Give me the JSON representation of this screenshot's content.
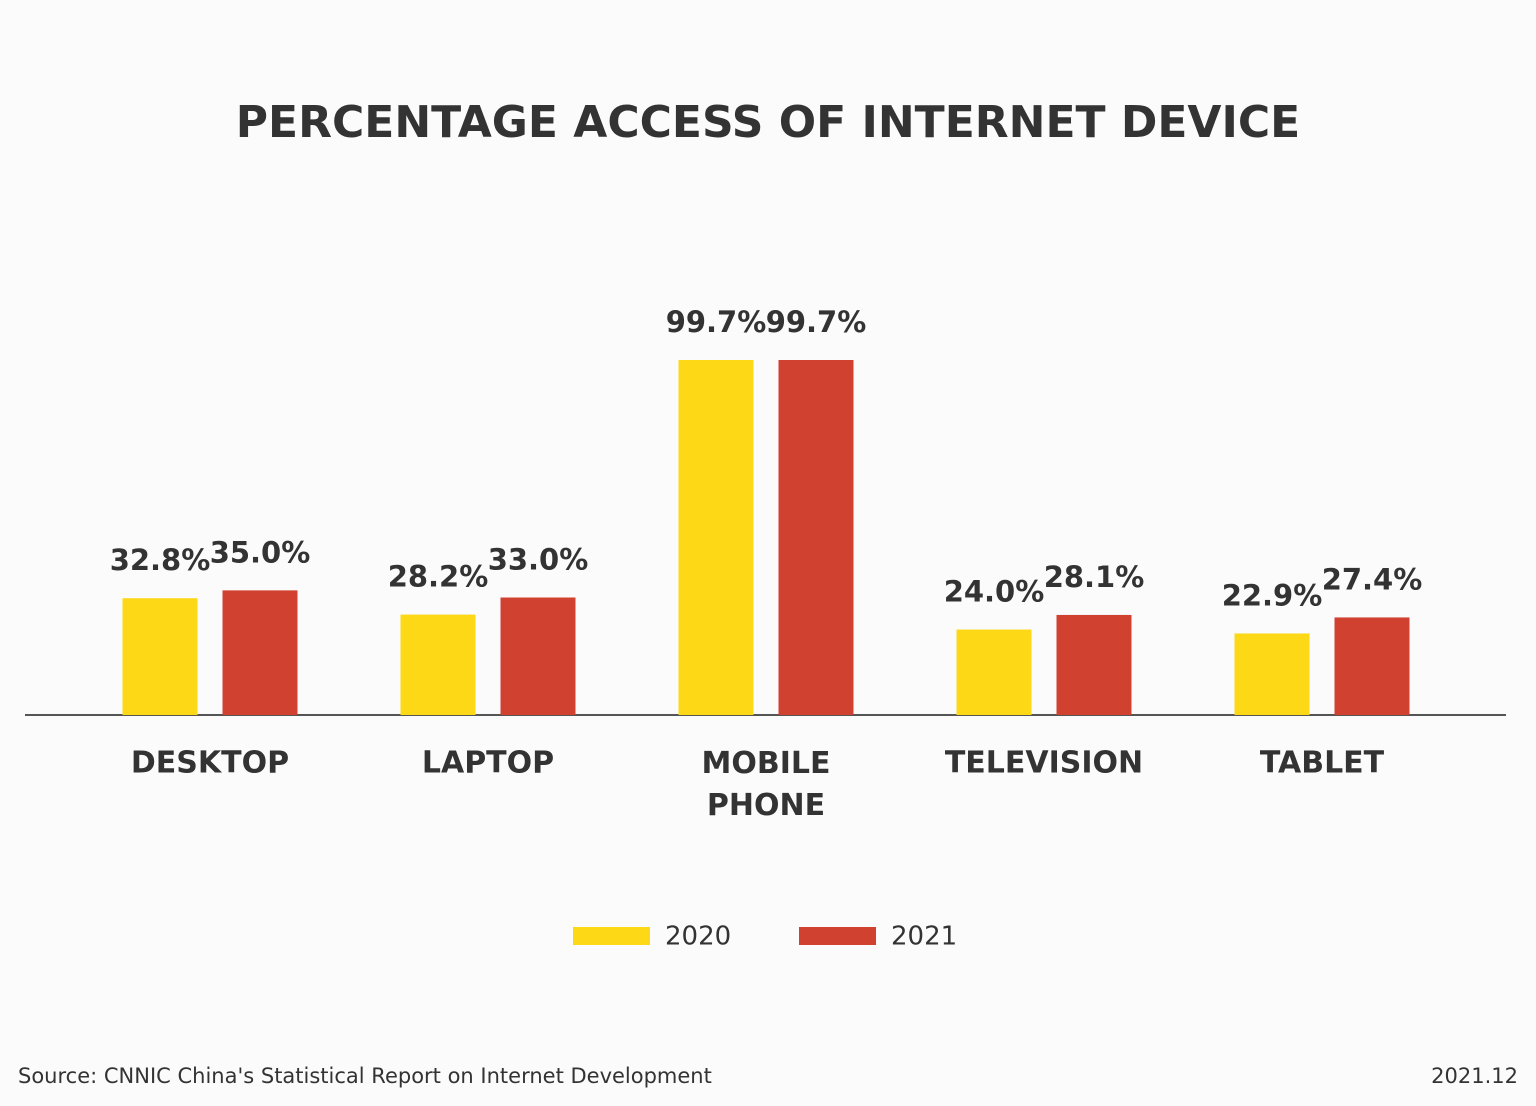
{
  "chart_data": {
    "type": "bar",
    "title": "PERCENTAGE ACCESS OF INTERNET DEVICE",
    "categories": [
      "DESKTOP",
      "LAPTOP",
      "MOBILE PHONE",
      "TELEVISION",
      "TABLET"
    ],
    "series": [
      {
        "name": "2020",
        "color": "#fdd817",
        "values": [
          32.8,
          28.2,
          99.7,
          24.0,
          22.9
        ],
        "value_labels": [
          "32.8%",
          "28.2%",
          "99.7%",
          "24.0%",
          "22.9%"
        ]
      },
      {
        "name": "2021",
        "color": "#d04130",
        "values": [
          35.0,
          33.0,
          99.7,
          28.1,
          27.4
        ],
        "value_labels": [
          "35.0%",
          "33.0%",
          "99.7%",
          "28.1%",
          "27.4%"
        ]
      }
    ],
    "source": "Source: CNNIC China's Statistical Report on Internet Development",
    "date": "2021.12"
  }
}
